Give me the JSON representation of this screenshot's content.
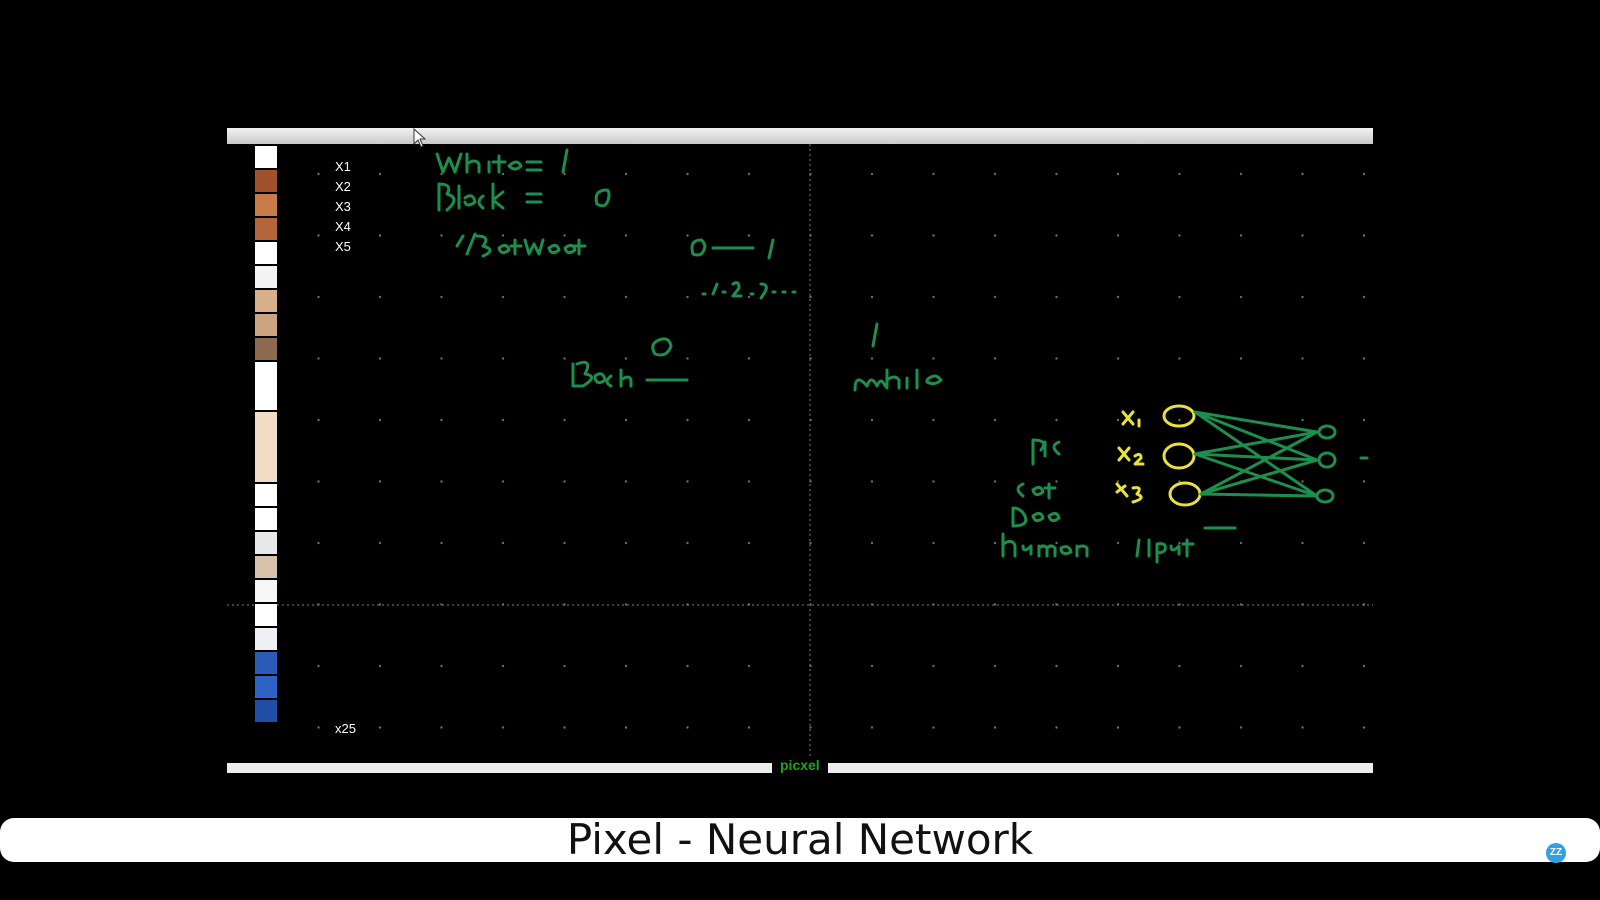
{
  "whiteboard": {
    "bottom_label": "picxel",
    "pixel_labels": [
      "X1",
      "X2",
      "X3",
      "X4",
      "X5"
    ],
    "pixel_label_last": "x25",
    "ink_colors": {
      "green": "#1c8f4c",
      "yellow": "#e8e23a"
    }
  },
  "caption": {
    "title": "Pixel - Neural Network",
    "badge": "ZZ"
  },
  "icons": {
    "cursor": "arrow-cursor-icon"
  }
}
